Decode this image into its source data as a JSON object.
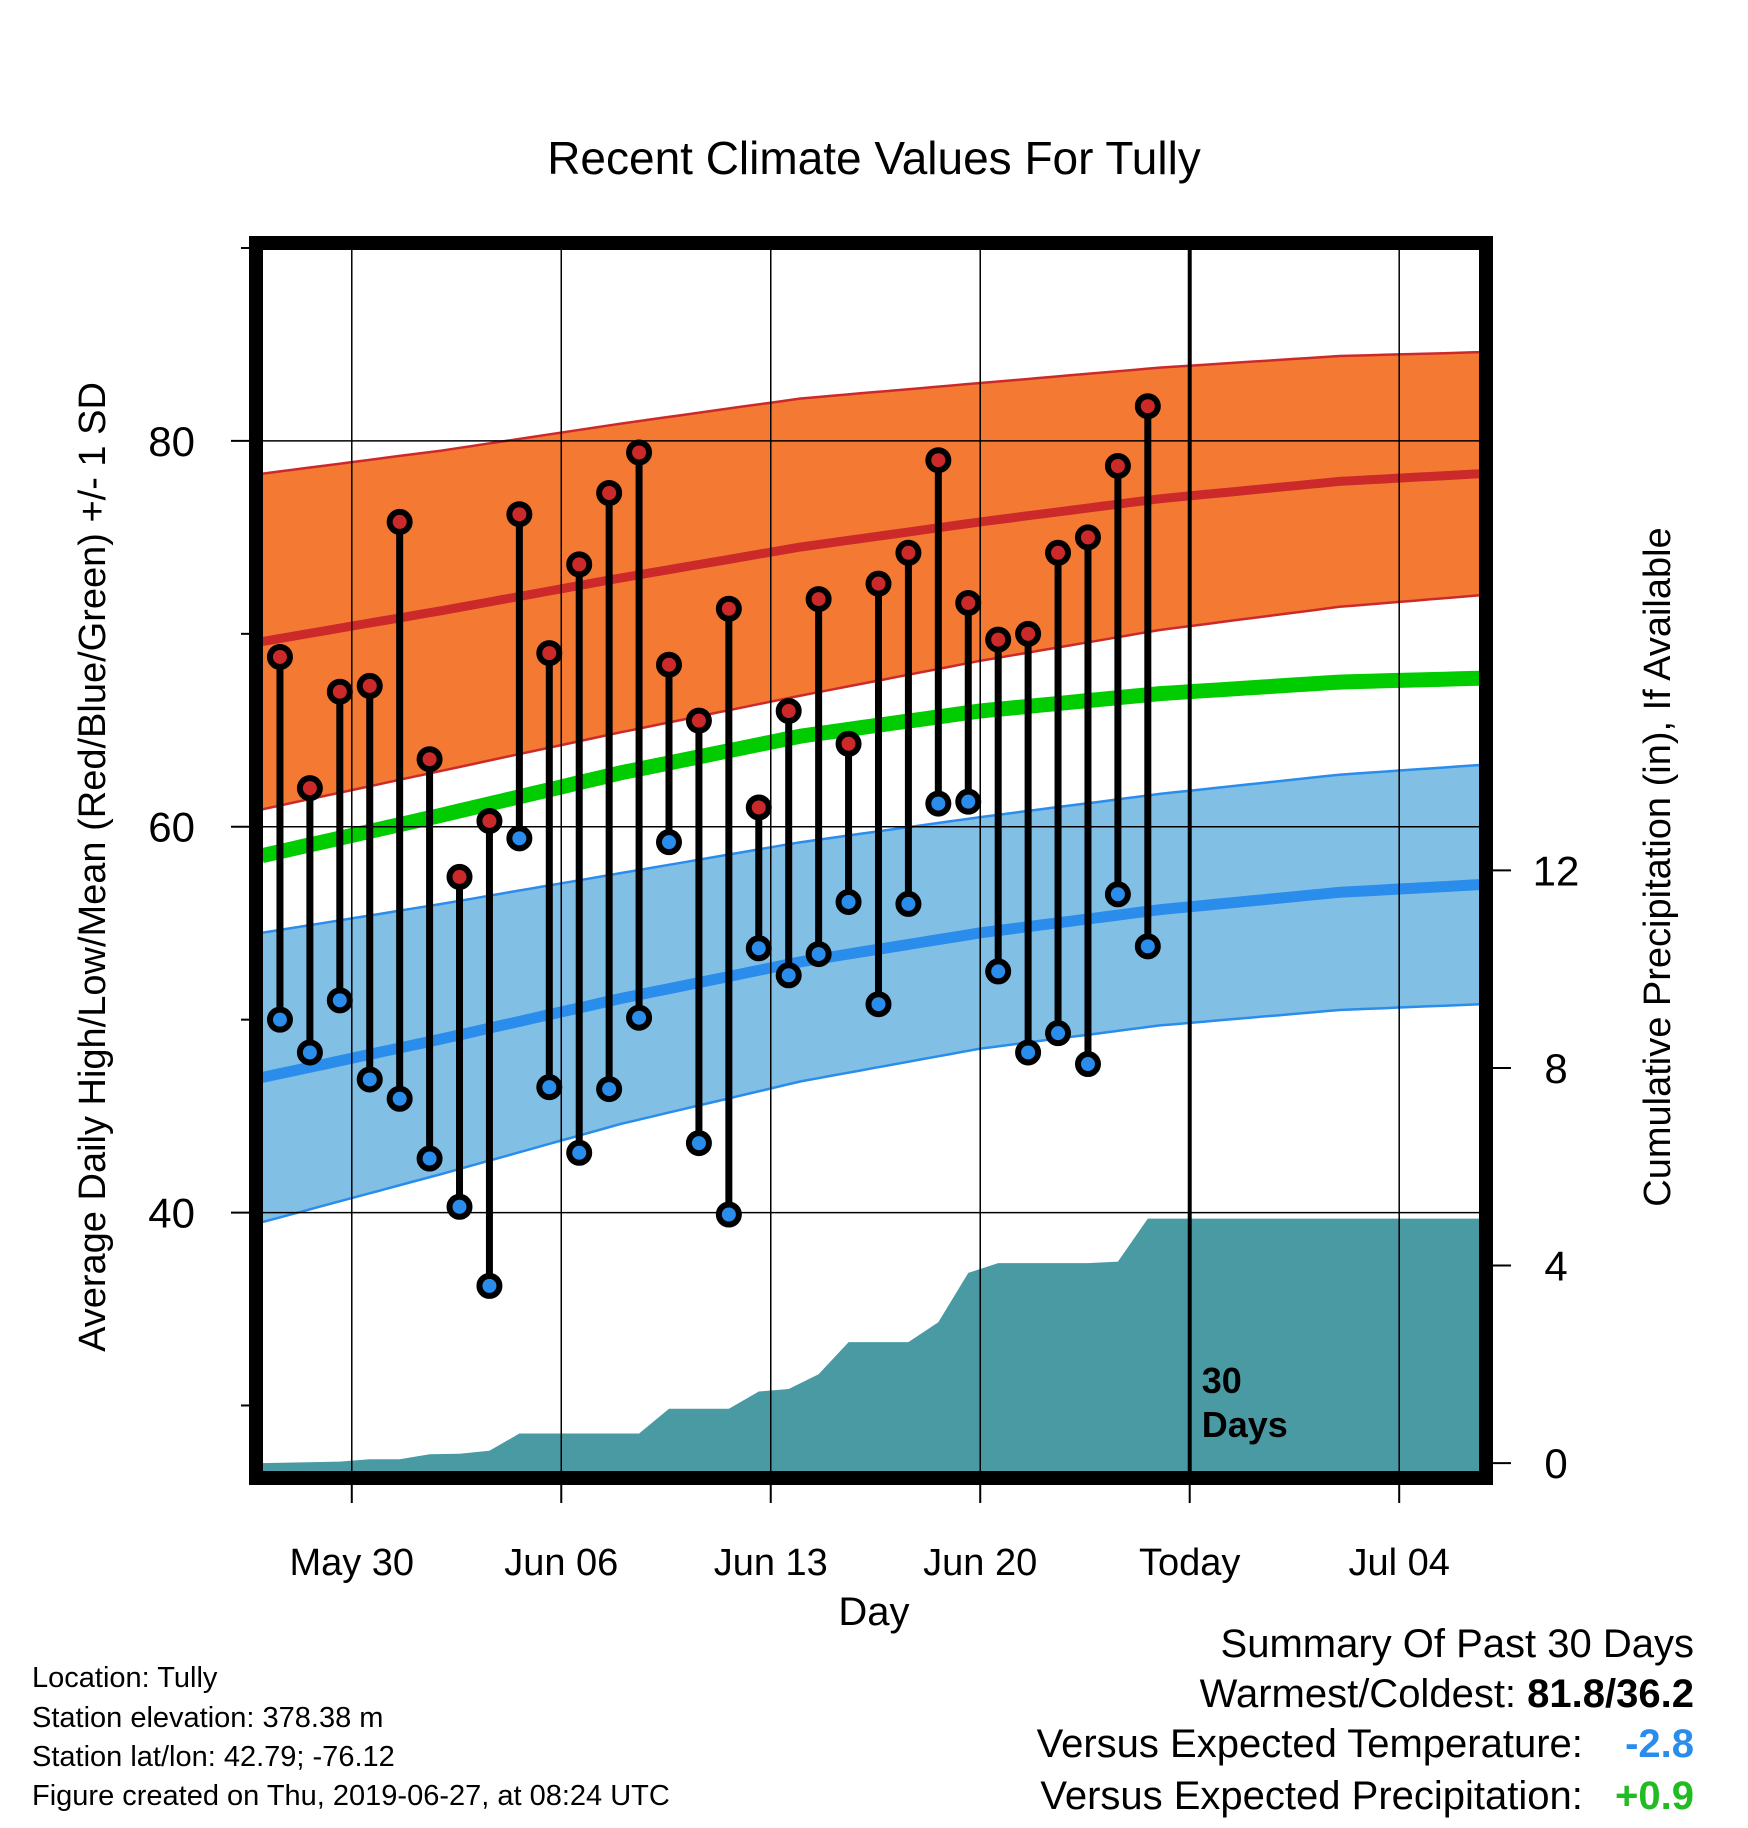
{
  "chart_data": {
    "type": "line",
    "title": "Recent Climate Values For Tully",
    "xlabel": "Day",
    "ylabel": "Average Daily High/Low/Mean (Red/Blue/Green) +/- 1 SD",
    "y2label": "Cumulative Precipitation (in), If Available",
    "x_tick_labels": [
      "May 30",
      "Jun 06",
      "Jun 13",
      "Jun 20",
      "Today",
      "Jul 04"
    ],
    "x_tick_days": [
      3,
      10,
      17,
      24,
      31,
      38
    ],
    "x_range_days": [
      0,
      40.7
    ],
    "ylim": [
      26.5,
      90
    ],
    "y_ticks": [
      40,
      60,
      80
    ],
    "y2lim": [
      -0.2,
      24.6
    ],
    "y2_ticks": [
      0,
      4,
      8,
      12
    ],
    "today_day": 31,
    "today_label": "30 Days",
    "days": [
      0.6,
      1.6,
      2.6,
      3.6,
      4.6,
      5.6,
      6.6,
      7.6,
      8.6,
      9.6,
      10.6,
      11.6,
      12.6,
      13.6,
      14.6,
      15.6,
      16.6,
      17.6,
      18.6,
      19.6,
      20.6,
      21.6,
      22.6,
      23.6,
      24.6,
      25.6,
      26.6,
      27.6,
      28.6,
      29.6
    ],
    "daily_high": [
      68.8,
      62.0,
      67.0,
      67.3,
      75.8,
      63.5,
      57.4,
      60.3,
      76.2,
      69.0,
      73.6,
      77.3,
      79.4,
      68.4,
      65.5,
      71.3,
      61.0,
      66.0,
      71.8,
      64.3,
      72.6,
      74.2,
      79.0,
      71.6,
      69.7,
      70.0,
      74.2,
      75.0,
      78.7,
      81.8
    ],
    "daily_low": [
      50.0,
      48.3,
      51.0,
      46.9,
      45.9,
      42.8,
      40.3,
      36.2,
      59.4,
      46.5,
      43.1,
      46.4,
      50.1,
      59.2,
      43.6,
      39.9,
      53.7,
      52.3,
      53.4,
      56.1,
      50.8,
      56.0,
      61.2,
      61.3,
      52.5,
      48.3,
      49.3,
      47.7,
      56.5,
      53.8
    ],
    "normal_curve_days": [
      0,
      6,
      12,
      18,
      24,
      30,
      36,
      40.7
    ],
    "normal_high": [
      69.6,
      71.2,
      72.9,
      74.5,
      75.8,
      77.0,
      77.9,
      78.3
    ],
    "normal_high_sd": [
      8.7,
      8.3,
      8.0,
      7.7,
      7.2,
      6.8,
      6.5,
      6.3
    ],
    "normal_low": [
      47.0,
      49.0,
      51.1,
      53.0,
      54.5,
      55.7,
      56.6,
      57.0
    ],
    "normal_low_sd": [
      7.5,
      7.0,
      6.5,
      6.2,
      6.0,
      6.0,
      6.1,
      6.2
    ],
    "normal_mean": [
      58.5,
      60.6,
      62.8,
      64.7,
      66.0,
      66.9,
      67.5,
      67.7
    ],
    "precip_days": [
      0,
      2.6,
      3.6,
      4.6,
      5.6,
      6.6,
      7.6,
      8.6,
      9.6,
      10.6,
      11.6,
      12.6,
      13.6,
      14.6,
      15.6,
      16.6,
      17.6,
      18.6,
      19.6,
      20.6,
      21.6,
      22.6,
      23.6,
      24.6,
      25.6,
      26.6,
      27.6,
      28.6,
      29.6,
      40.7
    ],
    "precip_cumulative": [
      0,
      0.03,
      0.08,
      0.08,
      0.18,
      0.19,
      0.25,
      0.6,
      0.6,
      0.6,
      0.6,
      0.6,
      1.1,
      1.1,
      1.1,
      1.45,
      1.5,
      1.8,
      2.45,
      2.45,
      2.45,
      2.85,
      3.85,
      4.05,
      4.05,
      4.05,
      4.05,
      4.08,
      4.95,
      4.95
    ],
    "colors": {
      "high_band": "#f47a33",
      "high_line": "#cc2a2a",
      "low_band": "#82bfe5",
      "low_line": "#2a8dec",
      "mean_line": "#00cc00",
      "precip": "#4a9aa3",
      "high_marker": "#cc2a2a",
      "low_marker": "#2a8dec"
    }
  },
  "footer": {
    "location": "Location: Tully",
    "elevation": "Station elevation: 378.38 m",
    "latlon": "Station lat/lon: 42.79; -76.12",
    "created": "Figure created on Thu, 2019-06-27, at 08:24 UTC"
  },
  "summary": {
    "title": "Summary Of Past 30 Days",
    "warm_cold_label": "Warmest/Coldest:",
    "warm_cold_value": "81.8/36.2",
    "temp_label": "Versus Expected Temperature:",
    "temp_value": "-2.8",
    "precip_label": "Versus Expected Precipitation:",
    "precip_value": "+0.9",
    "temp_color": "#2a8dec",
    "precip_color": "#22bb22"
  }
}
